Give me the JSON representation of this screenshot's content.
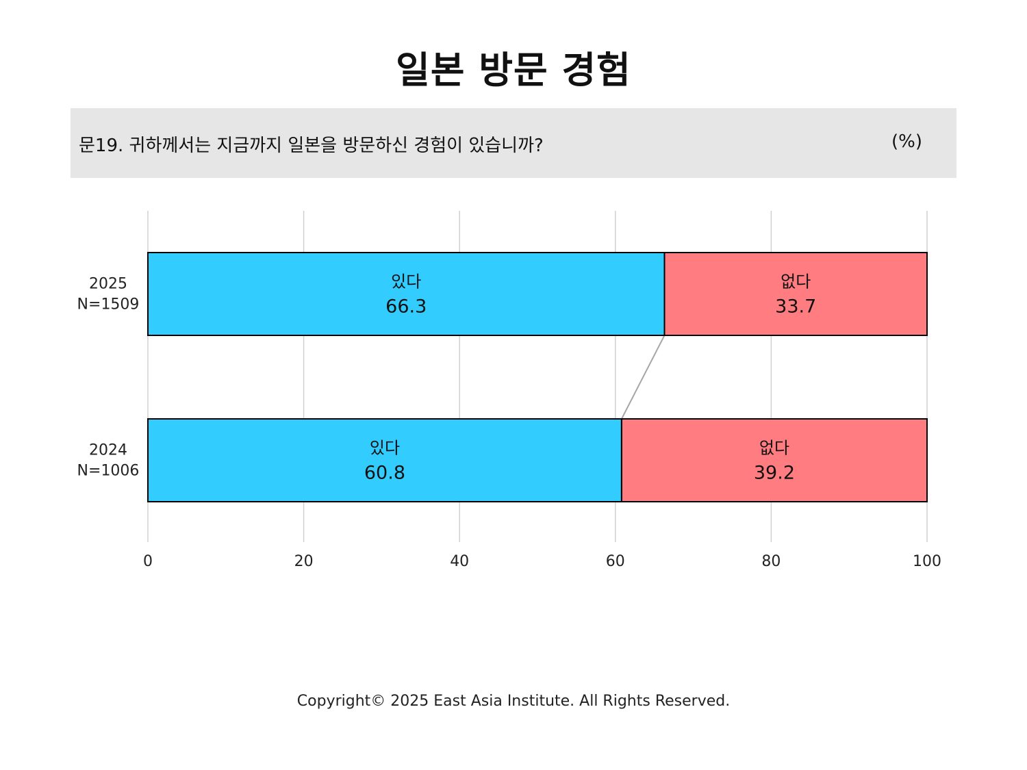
{
  "title": "일본 방문 경험",
  "question": {
    "text": "문19. 귀하께서는 지금까지 일본을 방문하신 경험이 있습니까?",
    "unit": "(%)"
  },
  "footer": "Copyright© 2025 East Asia Institute. All Rights Reserved.",
  "colors": {
    "yes": "#33ccff",
    "no": "#ff7c80",
    "grid": "#d0d0d0",
    "connector": "#a6a6a6",
    "border": "#000000"
  },
  "chart_data": {
    "type": "bar",
    "orientation": "horizontal",
    "stacked": true,
    "categories": [
      {
        "year": "2025",
        "n": "N=1509"
      },
      {
        "year": "2024",
        "n": "N=1006"
      }
    ],
    "series": [
      {
        "name": "있다",
        "values": [
          66.3,
          60.8
        ],
        "color": "#33ccff"
      },
      {
        "name": "없다",
        "values": [
          33.7,
          39.2
        ],
        "color": "#ff7c80"
      }
    ],
    "xlim": [
      0,
      100
    ],
    "xticks": [
      "0",
      "20",
      "40",
      "60",
      "80",
      "100"
    ],
    "grid": true,
    "connector_line": true
  }
}
